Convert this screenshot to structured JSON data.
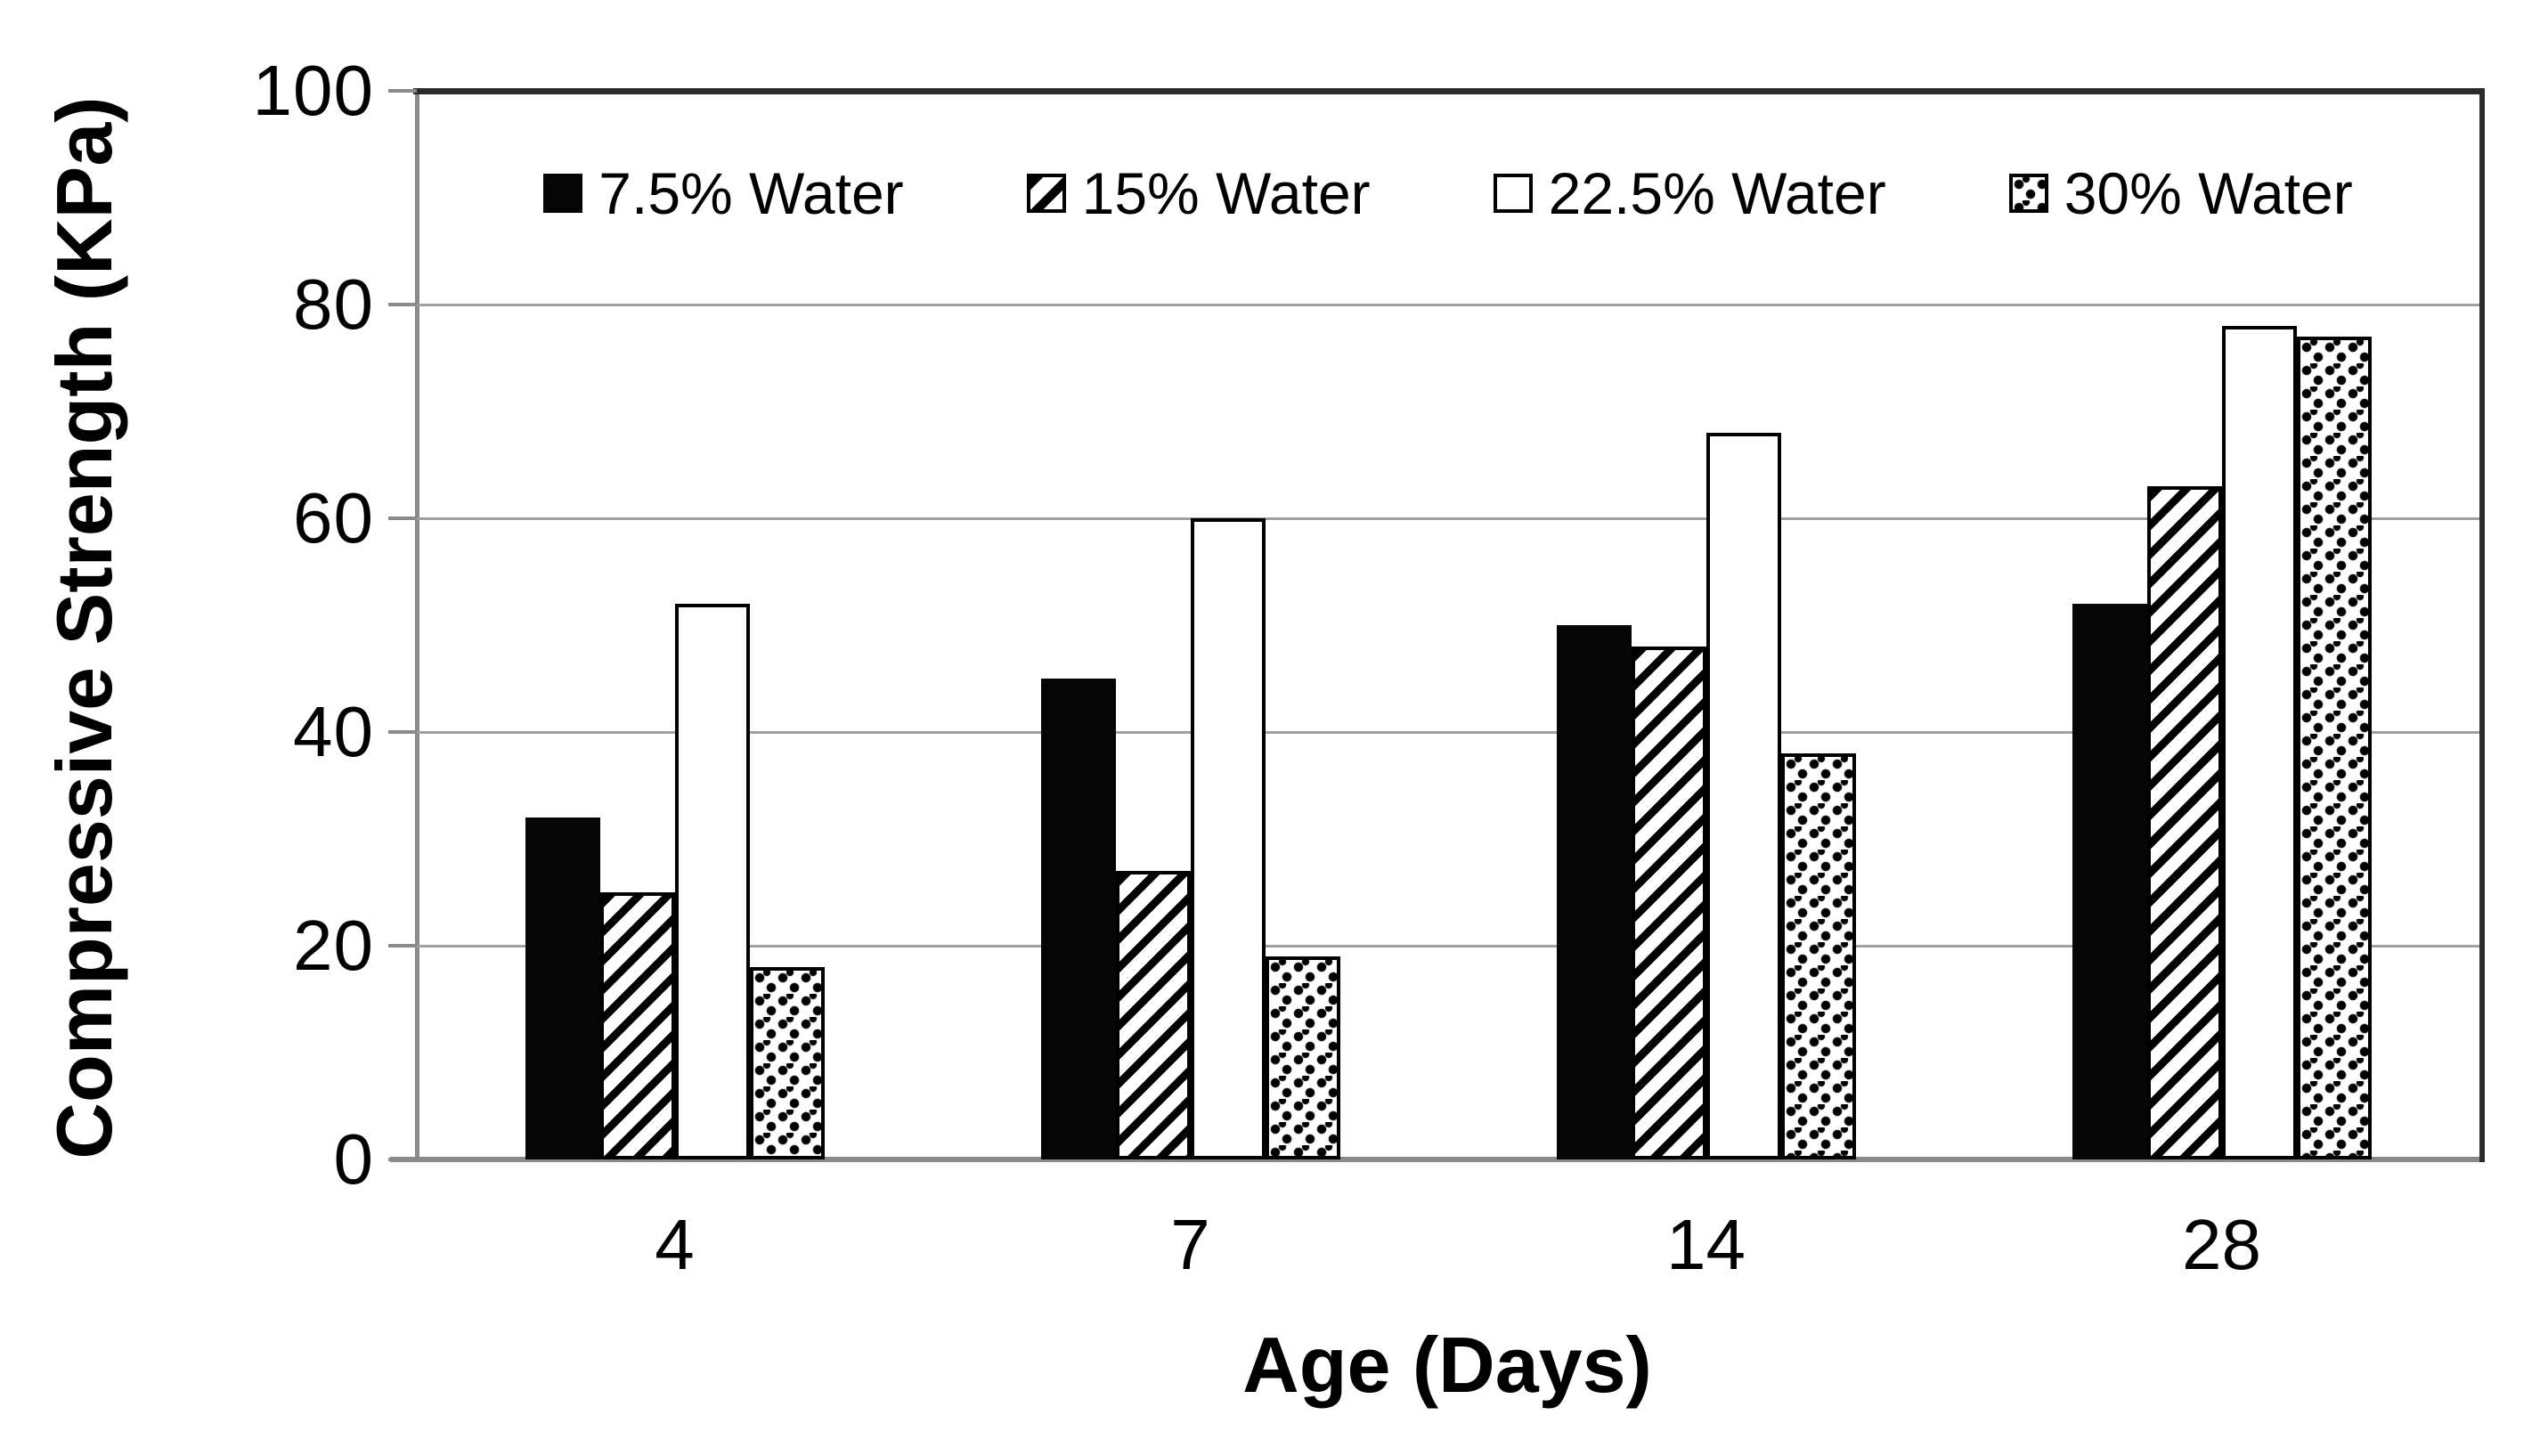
{
  "chart_data": {
    "type": "bar",
    "categories": [
      "4",
      "7",
      "14",
      "28"
    ],
    "series": [
      {
        "name": "7.5% Water",
        "pattern": "solid-black",
        "values": [
          32,
          45,
          50,
          52
        ]
      },
      {
        "name": "15% Water",
        "pattern": "diagonal-stripe",
        "values": [
          25,
          27,
          48,
          63
        ]
      },
      {
        "name": "22.5% Water",
        "pattern": "white-outline",
        "values": [
          52,
          60,
          68,
          78
        ]
      },
      {
        "name": "30% Water",
        "pattern": "dotted",
        "values": [
          18,
          19,
          38,
          77
        ]
      }
    ],
    "xlabel": "Age (Days)",
    "ylabel": "Compressive Strength (KPa)",
    "ylim": [
      0,
      100
    ],
    "yticks": [
      0,
      20,
      40,
      60,
      80,
      100
    ],
    "grid": "horizontal-only",
    "legend_position": "top-center-inside-plot",
    "colors": {
      "foreground": "#000000",
      "background": "#ffffff",
      "gridline": "#a0a0a0",
      "axis_line": "#8a8a8a",
      "plot_border": "#2b2b2b"
    }
  }
}
